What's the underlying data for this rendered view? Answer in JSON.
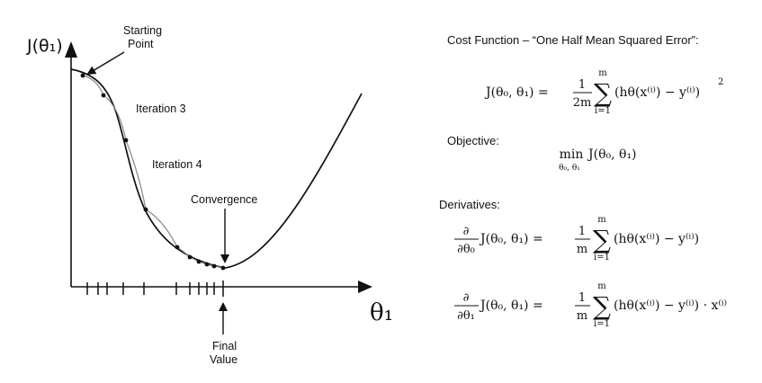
{
  "diagram": {
    "y_axis_label": "J(θ₁)",
    "x_axis_label": "θ₁",
    "annotations": {
      "starting_point": [
        "Starting",
        "Point"
      ],
      "iteration_3": "Iteration 3",
      "iteration_4": "Iteration 4",
      "convergence": "Convergence",
      "final_value": [
        "Final",
        "Value"
      ]
    }
  },
  "panel": {
    "cost_title": "Cost Function – “One Half Mean Squared Error”:",
    "objective_label": "Objective:",
    "derivatives_label": "Derivatives:"
  },
  "formulas": {
    "cost": {
      "lhs": "J(θ₀, θ₁) =",
      "frac_num": "1",
      "frac_den": "2m",
      "sum_top": "m",
      "sum_bottom": "i=1",
      "body": "(hθ(x⁽ⁱ⁾) − y⁽ⁱ⁾)",
      "power": "2"
    },
    "objective": {
      "min": "min",
      "subscript": "θ₀, θ₁",
      "body": "J(θ₀, θ₁)"
    },
    "deriv0": {
      "partial_num": "∂",
      "partial_den": "∂θ₀",
      "lhs": "J(θ₀, θ₁) =",
      "frac_num": "1",
      "frac_den": "m",
      "sum_top": "m",
      "sum_bottom": "i=1",
      "body": "(hθ(x⁽ⁱ⁾) − y⁽ⁱ⁾)"
    },
    "deriv1": {
      "partial_num": "∂",
      "partial_den": "∂θ₁",
      "lhs": "J(θ₀, θ₁) =",
      "frac_num": "1",
      "frac_den": "m",
      "sum_top": "m",
      "sum_bottom": "i=1",
      "body": "(hθ(x⁽ⁱ⁾) − y⁽ⁱ⁾) · x⁽ⁱ⁾"
    }
  }
}
